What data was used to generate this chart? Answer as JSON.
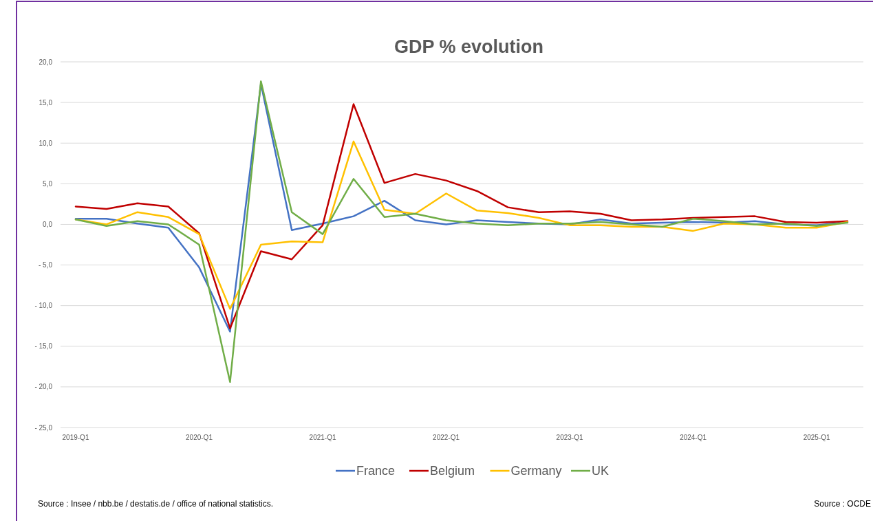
{
  "chart_data": {
    "type": "line",
    "title": "GDP  % evolution",
    "categories": [
      "2019-Q1",
      null,
      null,
      null,
      "2020-Q1",
      null,
      null,
      null,
      "2021-Q1",
      null,
      null,
      null,
      "2022-Q1",
      null,
      null,
      null,
      "2023-Q1",
      null,
      null,
      null,
      "2024-Q1",
      null,
      null,
      null,
      "2025-Q1",
      null
    ],
    "series": [
      {
        "name": "France",
        "color": "#4472c4",
        "values": [
          0.7,
          0.7,
          0.1,
          -0.4,
          -5.3,
          -13.2,
          17.3,
          -0.7,
          0.1,
          1.0,
          2.9,
          0.5,
          0.0,
          0.5,
          0.3,
          0.1,
          0.0,
          0.6,
          0.1,
          0.2,
          0.3,
          0.2,
          0.4,
          0.0,
          -0.1,
          0.3
        ]
      },
      {
        "name": "Belgium",
        "color": "#c00000",
        "values": [
          2.2,
          1.9,
          2.6,
          2.2,
          -1.1,
          -12.8,
          -3.3,
          -4.3,
          -0.1,
          14.8,
          5.1,
          6.2,
          5.4,
          4.1,
          2.1,
          1.5,
          1.6,
          1.3,
          0.5,
          0.6,
          0.8,
          0.9,
          1.0,
          0.3,
          0.2,
          0.4
        ]
      },
      {
        "name": "Germany",
        "color": "#ffc000",
        "values": [
          0.6,
          0.0,
          1.5,
          0.9,
          -1.2,
          -10.4,
          -2.5,
          -2.1,
          -2.2,
          10.2,
          1.8,
          1.3,
          3.8,
          1.7,
          1.4,
          0.8,
          -0.1,
          -0.1,
          -0.3,
          -0.3,
          -0.8,
          0.1,
          0.0,
          -0.4,
          -0.4,
          0.3
        ]
      },
      {
        "name": "UK",
        "color": "#70ad47",
        "values": [
          0.6,
          -0.2,
          0.4,
          0.0,
          -2.5,
          -19.4,
          17.6,
          1.5,
          -1.2,
          5.6,
          0.9,
          1.3,
          0.5,
          0.1,
          -0.1,
          0.1,
          0.1,
          0.3,
          0.0,
          -0.3,
          0.7,
          0.4,
          0.0,
          0.1,
          -0.2,
          0.2
        ]
      }
    ],
    "ylim": [
      -25,
      20
    ],
    "yticks": [
      {
        "value": -25,
        "label": "- 25,0"
      },
      {
        "value": -20,
        "label": "- 20,0"
      },
      {
        "value": -15,
        "label": "- 15,0"
      },
      {
        "value": -10,
        "label": "- 10,0"
      },
      {
        "value": -5,
        "label": "- 5,0"
      },
      {
        "value": 0,
        "label": "0,0"
      },
      {
        "value": 5,
        "label": "5,0"
      },
      {
        "value": 10,
        "label": "10,0"
      },
      {
        "value": 15,
        "label": "15,0"
      },
      {
        "value": 20,
        "label": "20,0"
      }
    ],
    "grid": "y",
    "legend": "bottom",
    "marker": "none",
    "line_style": "solid",
    "annotations": [
      "Source : Insee / nbb.be / destatis.de / office of national statistics.",
      "Source : OCDE"
    ]
  }
}
